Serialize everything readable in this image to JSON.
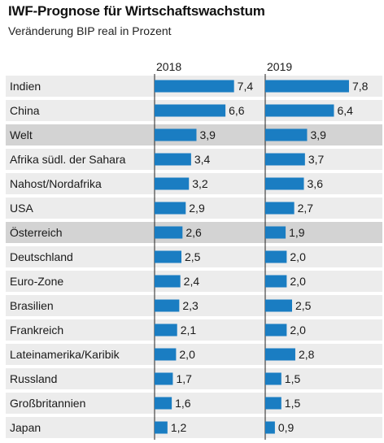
{
  "title": "IWF-Prognose für Wirtschaftswachstum",
  "subtitle": "Veränderung BIP real in Prozent",
  "colors": {
    "bar": "#1a7dc2",
    "band_light": "#ececec",
    "band_highlight": "#d3d3d3",
    "axis": "#222222"
  },
  "chart_data": {
    "type": "bar",
    "orientation": "horizontal",
    "title": "IWF-Prognose für Wirtschaftswachstum",
    "subtitle": "Veränderung BIP real in Prozent",
    "categories": [
      "Indien",
      "China",
      "Welt",
      "Afrika südl. der Sahara",
      "Nahost/Nordafrika",
      "USA",
      "Österreich",
      "Deutschland",
      "Euro-Zone",
      "Brasilien",
      "Frankreich",
      "Lateinamerika/Karibik",
      "Russland",
      "Großbritannien",
      "Japan"
    ],
    "highlighted": [
      "Welt",
      "Österreich"
    ],
    "series": [
      {
        "name": "2018",
        "values": [
          7.4,
          6.6,
          3.9,
          3.4,
          3.2,
          2.9,
          2.6,
          2.5,
          2.4,
          2.3,
          2.1,
          2.0,
          1.7,
          1.6,
          1.2
        ],
        "labels": [
          "7,4",
          "6,6",
          "3,9",
          "3,4",
          "3,2",
          "2,9",
          "2,6",
          "2,5",
          "2,4",
          "2,3",
          "2,1",
          "2,0",
          "1,7",
          "1,6",
          "1,2"
        ]
      },
      {
        "name": "2019",
        "values": [
          7.8,
          6.4,
          3.9,
          3.7,
          3.6,
          2.7,
          1.9,
          2.0,
          2.0,
          2.5,
          2.0,
          2.8,
          1.5,
          1.5,
          0.9
        ],
        "labels": [
          "7,8",
          "6,4",
          "3,9",
          "3,7",
          "3,6",
          "2,7",
          "1,9",
          "2,0",
          "2,0",
          "2,5",
          "2,0",
          "2,8",
          "1,5",
          "1,5",
          "0,9"
        ]
      }
    ],
    "xlim": [
      0,
      8
    ],
    "grid": false,
    "legend": "none"
  }
}
